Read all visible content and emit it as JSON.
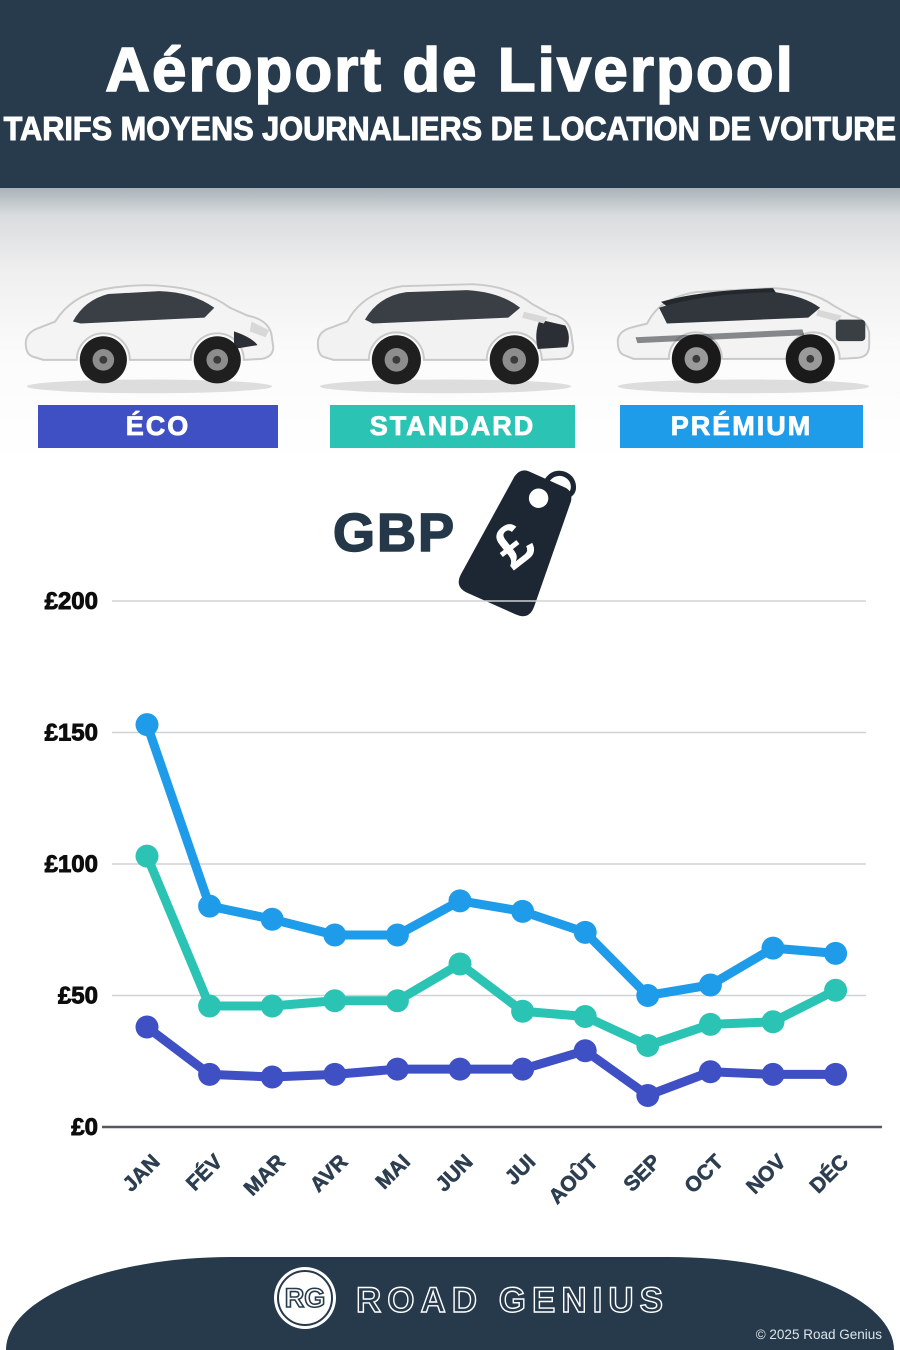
{
  "header": {
    "title": "Aéroport de Liverpool",
    "subtitle": "TARIFS MOYENS JOURNALIERS DE LOCATION DE VOITURE"
  },
  "categories": [
    {
      "label": "ÉCO",
      "color": "#3e50c3"
    },
    {
      "label": "STANDARD",
      "color": "#2bc4b4"
    },
    {
      "label": "PRÉMIUM",
      "color": "#1e9be9"
    }
  ],
  "currency": {
    "label": "GBP",
    "symbol": "£",
    "tag_color": "#1c2733"
  },
  "chart_data": {
    "type": "line",
    "categories": [
      "JAN",
      "FÉV",
      "MAR",
      "AVR",
      "MAI",
      "JUN",
      "JUI",
      "AOÛT",
      "SEP",
      "OCT",
      "NOV",
      "DÉC"
    ],
    "series": [
      {
        "name": "PRÉMIUM",
        "color": "#1e9be9",
        "values": [
          153,
          84,
          79,
          73,
          73,
          86,
          82,
          74,
          50,
          54,
          68,
          66
        ]
      },
      {
        "name": "STANDARD",
        "color": "#2bc4b4",
        "values": [
          103,
          46,
          46,
          48,
          48,
          62,
          44,
          42,
          31,
          39,
          40,
          52
        ]
      },
      {
        "name": "ÉCO",
        "color": "#3e50c3",
        "values": [
          38,
          20,
          19,
          20,
          22,
          22,
          22,
          29,
          12,
          21,
          20,
          20
        ]
      }
    ],
    "yticks": [
      {
        "label": "£0",
        "value": 0
      },
      {
        "label": "£50",
        "value": 50
      },
      {
        "label": "£100",
        "value": 100
      },
      {
        "label": "£150",
        "value": 150
      },
      {
        "label": "£200",
        "value": 200
      }
    ],
    "ylim": [
      0,
      200
    ],
    "grid": true,
    "legend": "none",
    "currency": "GBP"
  },
  "footer": {
    "logo_initials": "RG",
    "brand": "ROAD GENIUS",
    "copyright": "© 2025 Road Genius"
  }
}
